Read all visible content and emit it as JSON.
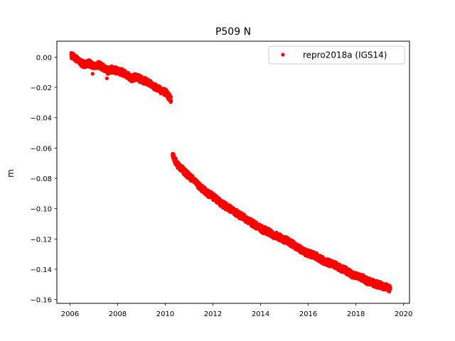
{
  "chart_data": {
    "type": "scatter",
    "title": "P509 N",
    "xlabel": "",
    "ylabel": "m",
    "xlim": [
      2005.45,
      2020.25
    ],
    "ylim": [
      -0.1625,
      0.0105
    ],
    "x_ticks": [
      2006,
      2008,
      2010,
      2012,
      2014,
      2016,
      2018,
      2020
    ],
    "x_tick_labels": [
      "2006",
      "2008",
      "2010",
      "2012",
      "2014",
      "2016",
      "2018",
      "2020"
    ],
    "y_ticks": [
      0.0,
      -0.02,
      -0.04,
      -0.06,
      -0.08,
      -0.1,
      -0.12,
      -0.14,
      -0.16
    ],
    "y_tick_labels": [
      "0.00",
      "−0.02",
      "−0.04",
      "−0.06",
      "−0.08",
      "−0.10",
      "−0.12",
      "−0.14",
      "−0.16"
    ],
    "grid": false,
    "legend_position": "top-right",
    "series": [
      {
        "name": "repro2018a (IGS14)",
        "color": "#ff0000",
        "marker": "circle",
        "points": [
          [
            2006.05,
            0.001
          ],
          [
            2006.2,
            0.0
          ],
          [
            2006.4,
            -0.003
          ],
          [
            2006.6,
            -0.005
          ],
          [
            2006.8,
            -0.004
          ],
          [
            2007.0,
            -0.006
          ],
          [
            2007.2,
            -0.005
          ],
          [
            2007.4,
            -0.007
          ],
          [
            2007.6,
            -0.009
          ],
          [
            2007.8,
            -0.008
          ],
          [
            2008.0,
            -0.009
          ],
          [
            2008.2,
            -0.01
          ],
          [
            2008.4,
            -0.012
          ],
          [
            2008.6,
            -0.014
          ],
          [
            2008.8,
            -0.013
          ],
          [
            2009.0,
            -0.015
          ],
          [
            2009.2,
            -0.016
          ],
          [
            2009.4,
            -0.018
          ],
          [
            2009.6,
            -0.02
          ],
          [
            2009.8,
            -0.022
          ],
          [
            2010.0,
            -0.023
          ],
          [
            2010.15,
            -0.026
          ],
          [
            2010.25,
            -0.028
          ],
          [
            2010.3,
            -0.063
          ],
          [
            2010.35,
            -0.066
          ],
          [
            2010.5,
            -0.071
          ],
          [
            2010.7,
            -0.074
          ],
          [
            2010.9,
            -0.077
          ],
          [
            2011.1,
            -0.08
          ],
          [
            2011.3,
            -0.083
          ],
          [
            2011.5,
            -0.086
          ],
          [
            2011.7,
            -0.089
          ],
          [
            2011.9,
            -0.091
          ],
          [
            2012.1,
            -0.093
          ],
          [
            2012.3,
            -0.096
          ],
          [
            2012.5,
            -0.098
          ],
          [
            2012.7,
            -0.1
          ],
          [
            2012.9,
            -0.102
          ],
          [
            2013.1,
            -0.104
          ],
          [
            2013.3,
            -0.106
          ],
          [
            2013.5,
            -0.108
          ],
          [
            2013.7,
            -0.11
          ],
          [
            2013.9,
            -0.112
          ],
          [
            2014.1,
            -0.114
          ],
          [
            2014.3,
            -0.115
          ],
          [
            2014.5,
            -0.117
          ],
          [
            2014.7,
            -0.118
          ],
          [
            2014.9,
            -0.12
          ],
          [
            2015.1,
            -0.121
          ],
          [
            2015.3,
            -0.123
          ],
          [
            2015.5,
            -0.125
          ],
          [
            2015.7,
            -0.127
          ],
          [
            2015.9,
            -0.129
          ],
          [
            2016.1,
            -0.13
          ],
          [
            2016.3,
            -0.131
          ],
          [
            2016.5,
            -0.133
          ],
          [
            2016.7,
            -0.135
          ],
          [
            2016.9,
            -0.136
          ],
          [
            2017.1,
            -0.137
          ],
          [
            2017.3,
            -0.139
          ],
          [
            2017.5,
            -0.14
          ],
          [
            2017.7,
            -0.142
          ],
          [
            2017.9,
            -0.144
          ],
          [
            2018.1,
            -0.145
          ],
          [
            2018.3,
            -0.146
          ],
          [
            2018.5,
            -0.148
          ],
          [
            2018.7,
            -0.149
          ],
          [
            2018.9,
            -0.15
          ],
          [
            2019.1,
            -0.151
          ],
          [
            2019.3,
            -0.152
          ],
          [
            2019.45,
            -0.153
          ]
        ],
        "outliers": [
          [
            2006.95,
            -0.011
          ],
          [
            2007.55,
            -0.014
          ]
        ]
      }
    ]
  }
}
